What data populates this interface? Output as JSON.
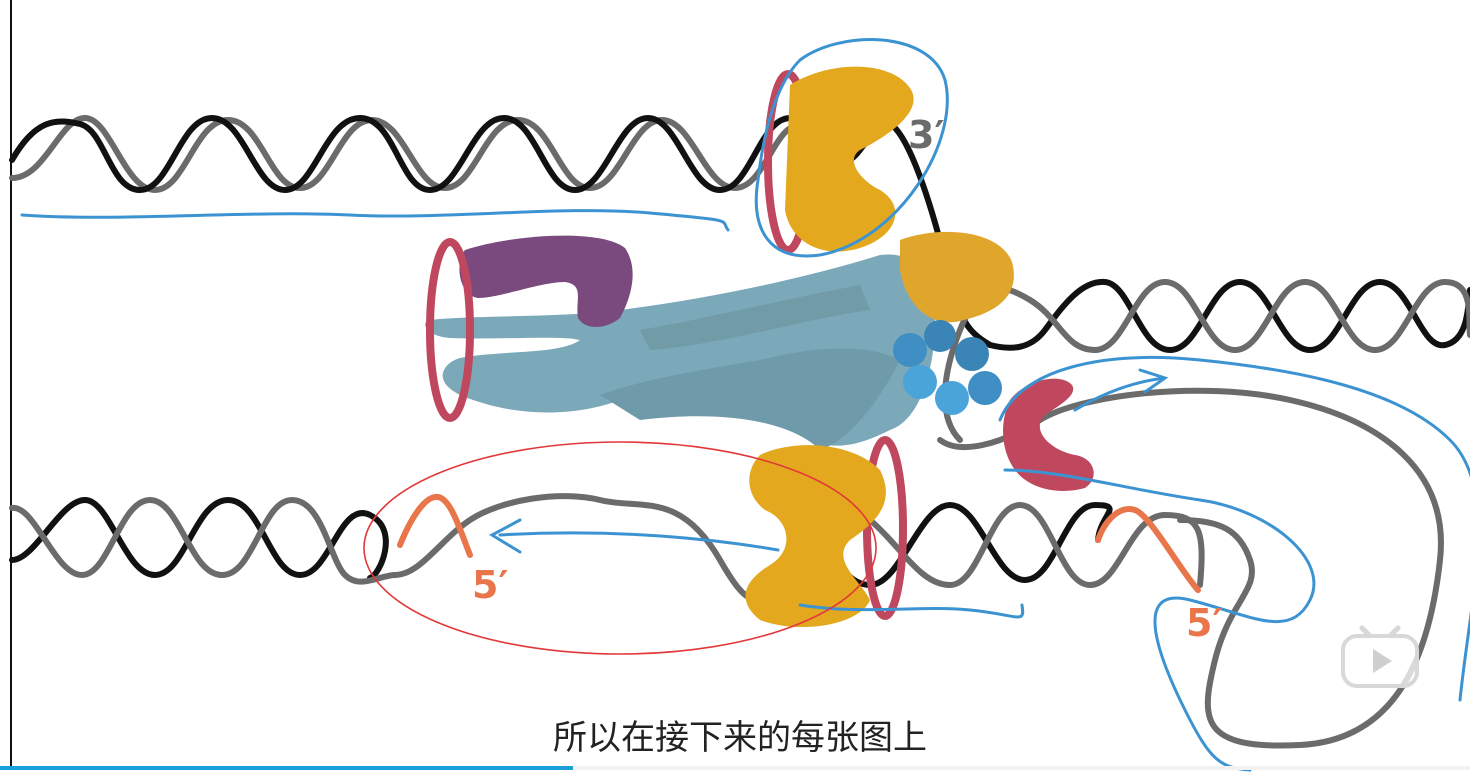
{
  "diagram": {
    "labels": {
      "three_prime_top": "3′",
      "five_prime_lower_left": "5′",
      "five_prime_lower_right": "5′"
    },
    "colors": {
      "strand_black": "#111111",
      "strand_gray": "#6b6b6b",
      "primer_orange": "#e8764a",
      "clamp_red": "#c0485e",
      "polymerase_gold": "#e3a81e",
      "helicase_purple": "#7a4a7e",
      "clamp_loader_teal": "#7ba9b9",
      "ssb_blue": "#3f8fc4",
      "annotation_blue": "#3c93d2",
      "annotation_red": "#e2383a"
    }
  },
  "subtitle": {
    "text": "所以在接下来的每张图上"
  },
  "player": {
    "progress": 0.39,
    "play_icon": "play-icon",
    "progress_color": "#1aa0d8"
  }
}
